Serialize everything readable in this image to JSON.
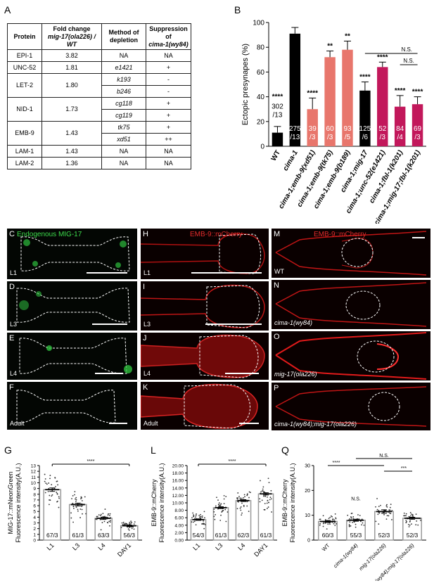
{
  "panel_letters": {
    "A": "A",
    "B": "B",
    "C": "C",
    "D": "D",
    "E": "E",
    "F": "F",
    "G": "G",
    "H": "H",
    "I": "I",
    "J": "J",
    "K": "K",
    "L": "L",
    "M": "M",
    "N": "N",
    "O": "O",
    "P": "P",
    "Q": "Q"
  },
  "table": {
    "headers": [
      "Protein",
      "Fold change",
      "mig-17(ola226) / WT",
      "Method of depletion",
      "Suppression of",
      "cima-1(wy84)"
    ],
    "rows": [
      {
        "protein": "EPI-1",
        "fold": "3.82",
        "method": "NA",
        "supp": "NA"
      },
      {
        "protein": "UNC-52",
        "fold": "1.81",
        "method": "e1421",
        "supp": "+"
      },
      {
        "protein": "LET-2",
        "fold": "1.80",
        "method": "k193",
        "supp": "-"
      },
      {
        "protein": "",
        "fold": "",
        "method": "b246",
        "supp": "-"
      },
      {
        "protein": "NID-1",
        "fold": "1.73",
        "method": "cg118",
        "supp": "+"
      },
      {
        "protein": "",
        "fold": "",
        "method": "cg119",
        "supp": "+"
      },
      {
        "protein": "EMB-9",
        "fold": "1.43",
        "method": "tk75",
        "supp": "+"
      },
      {
        "protein": "",
        "fold": "",
        "method": "xd51",
        "supp": "++"
      },
      {
        "protein": "LAM-1",
        "fold": "1.43",
        "method": "NA",
        "supp": "NA"
      },
      {
        "protein": "LAM-2",
        "fold": "1.36",
        "method": "NA",
        "supp": "NA"
      }
    ]
  },
  "micrographs": {
    "C_title": "Endogenous MIG-17",
    "H_title": "EMB-9::mCherry",
    "M_title": "EMB-9::mCherry",
    "C": "L1",
    "D": "L3",
    "E": "L4",
    "F": "Adult",
    "H": "L1",
    "I": "L3",
    "J": "L4",
    "K": "Adult",
    "M": "WT",
    "N": "cima-1(wy84)",
    "O": "mig-17(ola226)",
    "P": "cima-1(wy84);mig-17(ola226)"
  },
  "chart_data": [
    {
      "id": "B",
      "type": "bar",
      "ylabel": "Ectopic presynapes (%)",
      "ylim": [
        0,
        100
      ],
      "yticks": [
        "0",
        "20",
        "40",
        "60",
        "80",
        "100"
      ],
      "categories": [
        "WT",
        "cima-1",
        "cima-1;emb-9(xd51)",
        "cima-1;emb-9(tk75)",
        "cima-1;emb-9(b189)",
        "cima-1;mig-17",
        "cima-1;unc-52(e1421)",
        "cima-1;fbl-1(k201)",
        "cima-1;mig-17;fbl-1(k201)"
      ],
      "values": [
        11,
        91,
        30,
        72,
        78,
        45,
        64,
        32,
        34
      ],
      "errors": [
        5,
        5,
        9,
        5,
        7,
        7,
        4,
        9,
        6
      ],
      "colors": [
        "#000000",
        "#000000",
        "#e8766c",
        "#e8766c",
        "#e8766c",
        "#000000",
        "#c2185b",
        "#c2185b",
        "#c2185b"
      ],
      "n_labels": [
        [
          "302",
          "/13"
        ],
        [
          "275",
          "/13"
        ],
        [
          "39",
          "/3"
        ],
        [
          "60",
          "/3"
        ],
        [
          "93",
          "/5"
        ],
        [
          "125",
          "/6"
        ],
        [
          "52",
          "/3"
        ],
        [
          "84",
          "/4"
        ],
        [
          "69",
          "/3"
        ]
      ],
      "stars": [
        "****",
        "",
        "****",
        "**",
        "**",
        "****",
        "****",
        "****",
        "****"
      ],
      "comparisons": [
        {
          "label": "N.S.",
          "from": 5,
          "to": 8
        },
        {
          "label": "N.S.",
          "from": 7,
          "to": 8
        }
      ]
    },
    {
      "id": "G",
      "type": "bar",
      "ylabel": "MIG-17::mNeonGreen Fluorescence intensity(A.U.)",
      "ylim": [
        0,
        13
      ],
      "yticks": [
        "0",
        "1",
        "2",
        "3",
        "4",
        "5",
        "6",
        "7",
        "8",
        "9",
        "10",
        "11",
        "12",
        "13"
      ],
      "categories": [
        "L1",
        "L3",
        "L4",
        "DAY1"
      ],
      "values": [
        8.8,
        6.2,
        3.8,
        2.5
      ],
      "errors": [
        0.3,
        0.25,
        0.2,
        0.15
      ],
      "n_labels": [
        "67/3",
        "61/3",
        "63/3",
        "56/3"
      ],
      "comparisons": [
        {
          "label": "****",
          "from": 0,
          "to": 3
        }
      ]
    },
    {
      "id": "L",
      "type": "bar",
      "ylabel": "EMB-9::mCherry Fluorescence intensity(A.U.)",
      "ylim": [
        0,
        20
      ],
      "yticks": [
        "0.00",
        "2.00",
        "4.00",
        "6.00",
        "8.00",
        "10.00",
        "12.00",
        "14.00",
        "16.00",
        "18.00",
        "20.00"
      ],
      "categories": [
        "L1",
        "L3",
        "L4",
        "DAY1"
      ],
      "values": [
        5.5,
        8.7,
        10.6,
        12.4
      ],
      "errors": [
        0.2,
        0.25,
        0.25,
        0.3
      ],
      "n_labels": [
        "54/3",
        "61/3",
        "62/3",
        "61/3"
      ],
      "comparisons": [
        {
          "label": "****",
          "from": 0,
          "to": 3
        }
      ]
    },
    {
      "id": "Q",
      "type": "bar",
      "ylabel": "EMB-9::mCherry Fluorescence intensity(A.U.)",
      "ylim": [
        0,
        30
      ],
      "yticks": [
        "0",
        "10",
        "20",
        "30"
      ],
      "categories": [
        "WT",
        "cima-1(wy84)",
        "mig-17(ola226)",
        "cima-1(wy84);mig-17(ola226)"
      ],
      "values": [
        7.5,
        8.0,
        11.5,
        8.8
      ],
      "errors": [
        0.4,
        0.4,
        0.7,
        0.4
      ],
      "n_labels": [
        "60/3",
        "55/3",
        "52/3",
        "52/3"
      ],
      "point_labels": [
        "",
        "N.S.",
        "",
        ""
      ],
      "comparisons": [
        {
          "label": "N.S.",
          "from": 1,
          "to": 3
        },
        {
          "label": "****",
          "from": 0,
          "to": 2
        },
        {
          "label": "***",
          "from": 2,
          "to": 3
        }
      ]
    }
  ]
}
